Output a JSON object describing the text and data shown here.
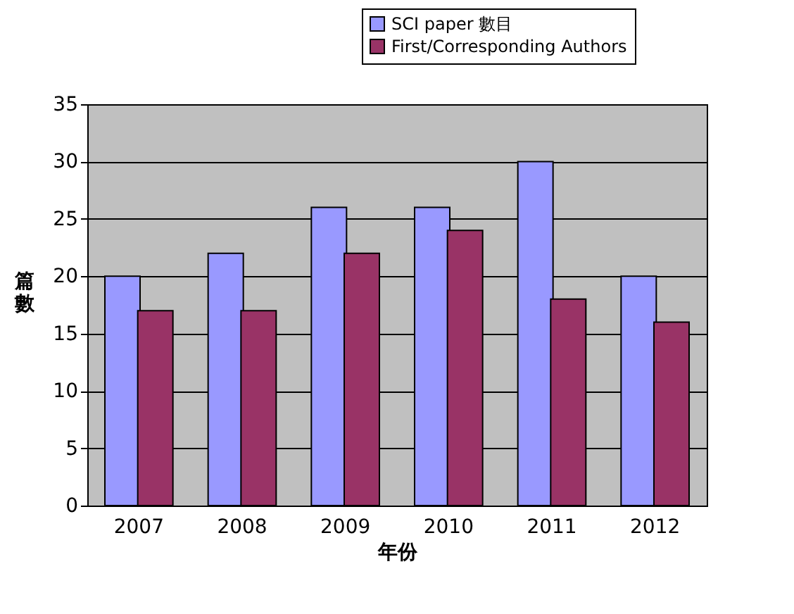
{
  "chart_data": {
    "type": "bar",
    "xlabel": "年份",
    "ylabel": "篇數",
    "categories": [
      "2007",
      "2008",
      "2009",
      "2010",
      "2011",
      "2012"
    ],
    "series": [
      {
        "name": "SCI paper 數目",
        "color": "#9999ff",
        "values": [
          20,
          22,
          26,
          26,
          30,
          20
        ]
      },
      {
        "name": "First/Corresponding Authors",
        "color": "#993366",
        "values": [
          17,
          17,
          22,
          24,
          18,
          16
        ]
      }
    ],
    "ylim": [
      0,
      35
    ],
    "yticks": [
      0,
      5,
      10,
      15,
      20,
      25,
      30,
      35
    ],
    "grid": "y",
    "legend": "top right"
  }
}
